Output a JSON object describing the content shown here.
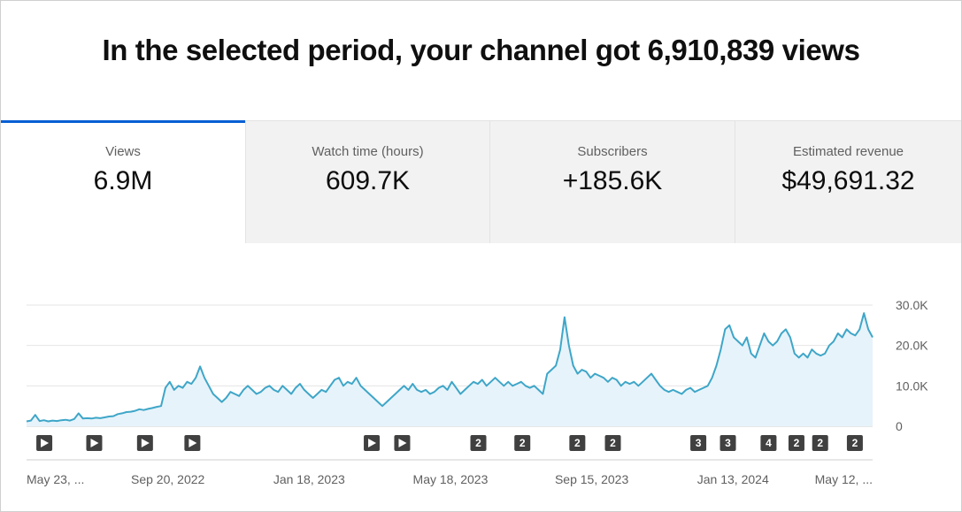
{
  "headline": "In the selected period, your channel got 6,910,839 views",
  "tabs": [
    {
      "label": "Views",
      "value": "6.9M",
      "active": true
    },
    {
      "label": "Watch time (hours)",
      "value": "609.7K",
      "active": false
    },
    {
      "label": "Subscribers",
      "value": "+185.6K",
      "active": false
    },
    {
      "label": "Estimated revenue",
      "value": "$49,691.32",
      "active": false
    }
  ],
  "chart_data": {
    "type": "area",
    "series": [
      {
        "values": [
          1200,
          1400,
          2800,
          1300,
          1500,
          1200,
          1400,
          1300,
          1500,
          1600,
          1400,
          1800,
          3200,
          1900,
          2000,
          1900,
          2100,
          2000,
          2200,
          2400,
          2500,
          3000,
          3200,
          3500,
          3600,
          3800,
          4200,
          4000,
          4300,
          4500,
          4800,
          5000,
          9500,
          11000,
          9000,
          10000,
          9500,
          11000,
          10500,
          12000,
          14800,
          12000,
          10000,
          8000,
          7000,
          6000,
          7000,
          8500,
          8000,
          7500,
          9000,
          10000,
          9000,
          8000,
          8500,
          9500,
          10000,
          9000,
          8500,
          10000,
          9000,
          8000,
          9500,
          10500,
          9000,
          8000,
          7000,
          8000,
          9000,
          8500,
          10000,
          11500,
          12000,
          10000,
          11000,
          10500,
          12000,
          10000,
          9000,
          8000,
          7000,
          6000,
          5000,
          6000,
          7000,
          8000,
          9000,
          10000,
          9000,
          10500,
          9000,
          8500,
          9000,
          8000,
          8500,
          9500,
          10000,
          9000,
          11000,
          9500,
          8000,
          9000,
          10000,
          11000,
          10500,
          11500,
          10000,
          11000,
          12000,
          11000,
          10000,
          11000,
          10000,
          10500,
          11000,
          10000,
          9500,
          10000,
          9000,
          8000,
          13000,
          14000,
          15000,
          19000,
          27000,
          20000,
          15000,
          13000,
          14000,
          13500,
          12000,
          13000,
          12500,
          12000,
          11000,
          12000,
          11500,
          10000,
          11000,
          10500,
          11000,
          10000,
          11000,
          12000,
          13000,
          11500,
          10000,
          9000,
          8500,
          9000,
          8500,
          8000,
          9000,
          9500,
          8500,
          9000,
          9500,
          10000,
          12000,
          15000,
          19000,
          24000,
          25000,
          22000,
          21000,
          20000,
          22000,
          18000,
          17000,
          20000,
          23000,
          21000,
          20000,
          21000,
          23000,
          24000,
          22000,
          18000,
          17000,
          18000,
          17000,
          19000,
          18000,
          17500,
          18000,
          20000,
          21000,
          23000,
          22000,
          24000,
          23000,
          22500,
          24000,
          28000,
          24000,
          22000
        ]
      }
    ],
    "x_tick_labels": [
      "May 23, ...",
      "Sep 20, 2022",
      "Jan 18, 2023",
      "May 18, 2023",
      "Sep 15, 2023",
      "Jan 13, 2024",
      "May 12, ..."
    ],
    "y_tick_labels": [
      "0",
      "10.0K",
      "20.0K",
      "30.0K"
    ],
    "ylim": [
      0,
      30000
    ],
    "grid": true,
    "fill_color": "#e7f3fa",
    "line_color": "#3ea6c8",
    "markers": [
      "play",
      "play",
      "play",
      "play",
      "play",
      "play",
      "2",
      "2",
      "2",
      "2",
      "3",
      "3",
      "4",
      "2",
      "2",
      "2"
    ],
    "marker_x_fraction": [
      0.021,
      0.08,
      0.14,
      0.196,
      0.408,
      0.444,
      0.534,
      0.586,
      0.651,
      0.693,
      0.794,
      0.829,
      0.877,
      0.91,
      0.938,
      0.979
    ]
  }
}
